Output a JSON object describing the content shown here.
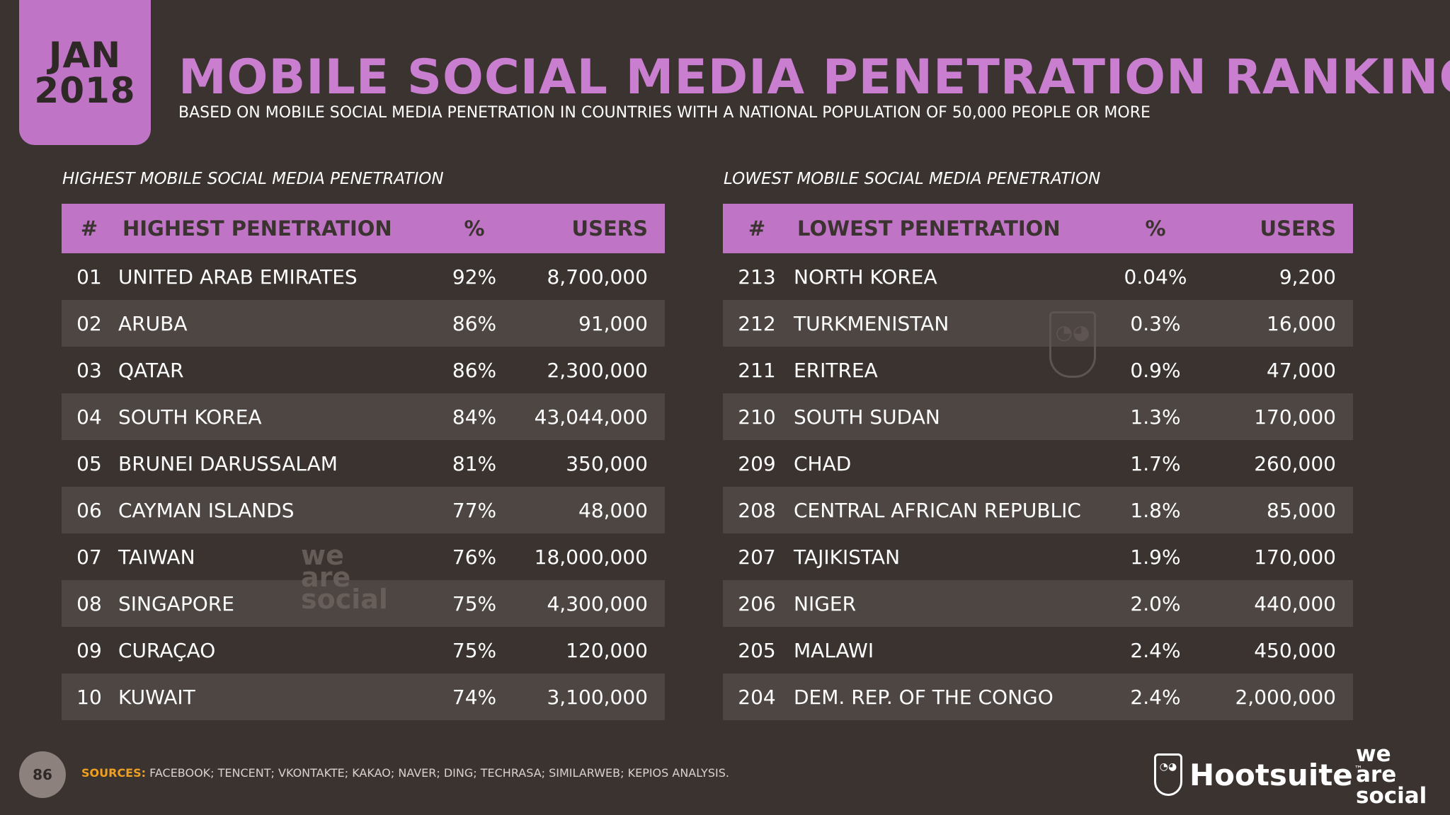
{
  "date": {
    "month": "JAN",
    "year": "2018"
  },
  "title": "MOBILE SOCIAL MEDIA PENETRATION RANKINGS",
  "subtitle": "BASED ON MOBILE SOCIAL MEDIA PENETRATION IN COUNTRIES WITH A NATIONAL POPULATION OF 50,000 PEOPLE OR MORE",
  "highest": {
    "section_label": "HIGHEST MOBILE SOCIAL MEDIA PENETRATION",
    "headers": {
      "rank": "#",
      "name": "HIGHEST PENETRATION",
      "pct": "%",
      "users": "USERS"
    },
    "rows": [
      {
        "rank": "01",
        "name": "UNITED ARAB EMIRATES",
        "pct": "92%",
        "users": "8,700,000"
      },
      {
        "rank": "02",
        "name": "ARUBA",
        "pct": "86%",
        "users": "91,000"
      },
      {
        "rank": "03",
        "name": "QATAR",
        "pct": "86%",
        "users": "2,300,000"
      },
      {
        "rank": "04",
        "name": "SOUTH KOREA",
        "pct": "84%",
        "users": "43,044,000"
      },
      {
        "rank": "05",
        "name": "BRUNEI DARUSSALAM",
        "pct": "81%",
        "users": "350,000"
      },
      {
        "rank": "06",
        "name": "CAYMAN ISLANDS",
        "pct": "77%",
        "users": "48,000"
      },
      {
        "rank": "07",
        "name": "TAIWAN",
        "pct": "76%",
        "users": "18,000,000"
      },
      {
        "rank": "08",
        "name": "SINGAPORE",
        "pct": "75%",
        "users": "4,300,000"
      },
      {
        "rank": "09",
        "name": "CURAÇAO",
        "pct": "75%",
        "users": "120,000"
      },
      {
        "rank": "10",
        "name": "KUWAIT",
        "pct": "74%",
        "users": "3,100,000"
      }
    ]
  },
  "lowest": {
    "section_label": "LOWEST MOBILE SOCIAL MEDIA PENETRATION",
    "headers": {
      "rank": "#",
      "name": "LOWEST PENETRATION",
      "pct": "%",
      "users": "USERS"
    },
    "rows": [
      {
        "rank": "213",
        "name": "NORTH KOREA",
        "pct": "0.04%",
        "users": "9,200"
      },
      {
        "rank": "212",
        "name": "TURKMENISTAN",
        "pct": "0.3%",
        "users": "16,000"
      },
      {
        "rank": "211",
        "name": "ERITREA",
        "pct": "0.9%",
        "users": "47,000"
      },
      {
        "rank": "210",
        "name": "SOUTH SUDAN",
        "pct": "1.3%",
        "users": "170,000"
      },
      {
        "rank": "209",
        "name": "CHAD",
        "pct": "1.7%",
        "users": "260,000"
      },
      {
        "rank": "208",
        "name": "CENTRAL AFRICAN REPUBLIC",
        "pct": "1.8%",
        "users": "85,000"
      },
      {
        "rank": "207",
        "name": "TAJIKISTAN",
        "pct": "1.9%",
        "users": "170,000"
      },
      {
        "rank": "206",
        "name": "NIGER",
        "pct": "2.0%",
        "users": "440,000"
      },
      {
        "rank": "205",
        "name": "MALAWI",
        "pct": "2.4%",
        "users": "450,000"
      },
      {
        "rank": "204",
        "name": "DEM. REP. OF THE CONGO",
        "pct": "2.4%",
        "users": "2,000,000"
      }
    ]
  },
  "footer": {
    "page_number": "86",
    "sources_label": "SOURCES:",
    "sources_text": " FACEBOOK; TENCENT; VKONTAKTE; KAKAO; NAVER; DING; TECHRASA; SIMILARWEB; KEPIOS ANALYSIS.",
    "hootsuite": "Hootsuite",
    "trademark": "™",
    "was_logo": [
      "we",
      "are",
      "social"
    ]
  },
  "watermark": {
    "was_lines": [
      "we",
      "are",
      "social"
    ]
  },
  "icons": {
    "owl": "hootsuite-owl-icon"
  },
  "colors": {
    "accent": "#c074c6",
    "title": "#c97ed0",
    "background": "#3a3330",
    "row_alt": "#4e4643",
    "sources_label": "#f0a020"
  }
}
